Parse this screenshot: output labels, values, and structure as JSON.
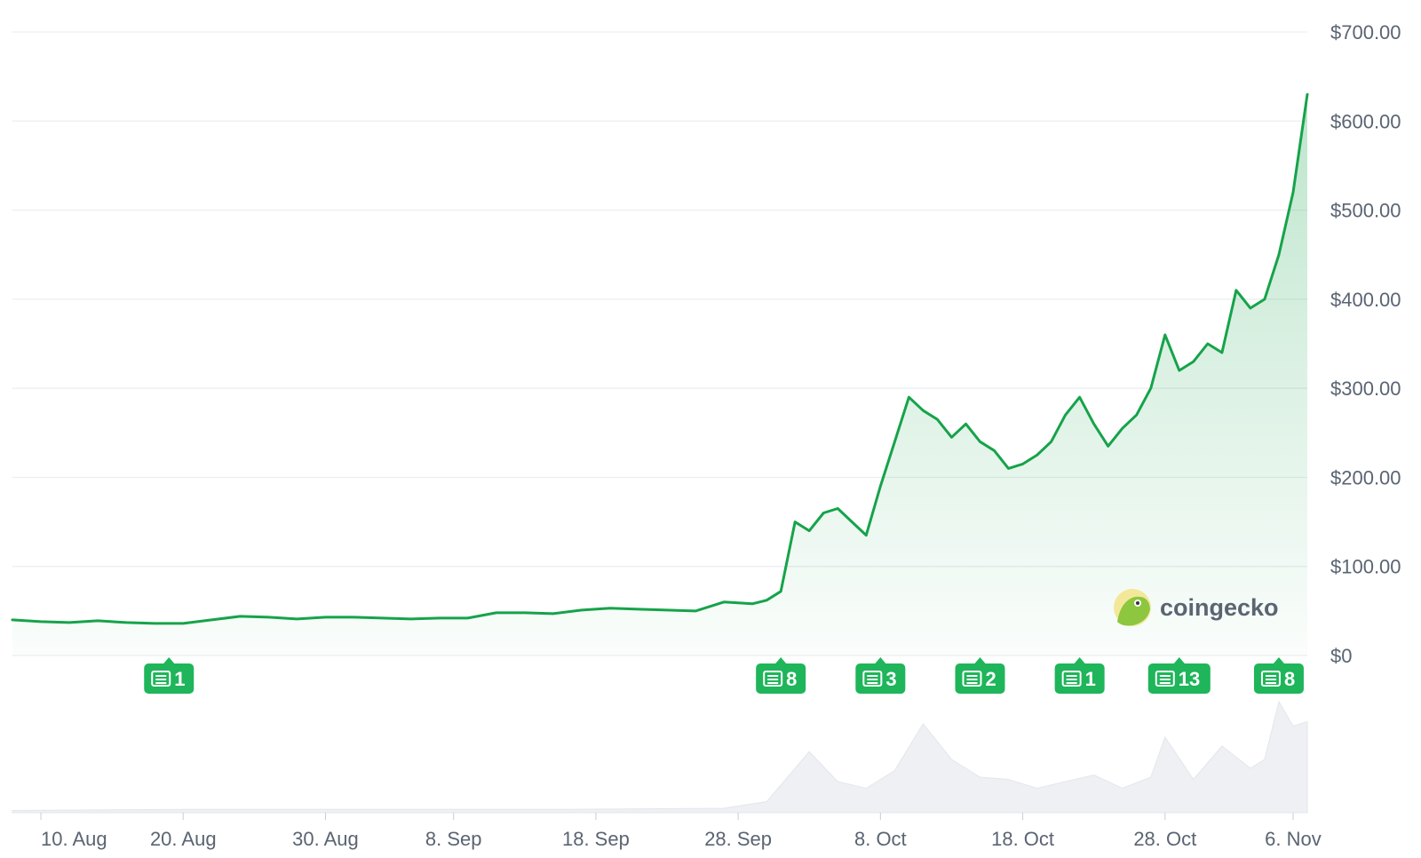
{
  "brand": {
    "name": "coingecko",
    "logo_icon": "gecko-logo-icon",
    "logo_color": "#8dc63f"
  },
  "colors": {
    "line": "#16a34a",
    "fill_top": "#16a34a",
    "badge": "#1fb55a",
    "volume": "#eef0f4",
    "grid": "#eaedf1",
    "tick_text": "#5a6472"
  },
  "chart_data": {
    "type": "area",
    "title": "",
    "xlabel": "",
    "ylabel": "",
    "ylim": [
      0,
      700
    ],
    "xlim": [
      "2024-08-08",
      "2024-11-07"
    ],
    "y_ticks": [
      {
        "value": 0,
        "label": "$0"
      },
      {
        "value": 100,
        "label": "$100.00"
      },
      {
        "value": 200,
        "label": "$200.00"
      },
      {
        "value": 300,
        "label": "$300.00"
      },
      {
        "value": 400,
        "label": "$400.00"
      },
      {
        "value": 500,
        "label": "$500.00"
      },
      {
        "value": 600,
        "label": "$600.00"
      },
      {
        "value": 700,
        "label": "$700.00"
      }
    ],
    "x_ticks": [
      {
        "date": "2024-08-10",
        "label": "10. Aug"
      },
      {
        "date": "2024-08-20",
        "label": "20. Aug"
      },
      {
        "date": "2024-08-30",
        "label": "30. Aug"
      },
      {
        "date": "2024-09-08",
        "label": "8. Sep"
      },
      {
        "date": "2024-09-18",
        "label": "18. Sep"
      },
      {
        "date": "2024-09-28",
        "label": "28. Sep"
      },
      {
        "date": "2024-10-08",
        "label": "8. Oct"
      },
      {
        "date": "2024-10-18",
        "label": "18. Oct"
      },
      {
        "date": "2024-10-28",
        "label": "28. Oct"
      },
      {
        "date": "2024-11-06",
        "label": "6. Nov"
      }
    ],
    "grid": true,
    "legend": "none",
    "price_series": {
      "x": [
        "2024-08-08",
        "2024-08-10",
        "2024-08-12",
        "2024-08-14",
        "2024-08-16",
        "2024-08-18",
        "2024-08-20",
        "2024-08-22",
        "2024-08-24",
        "2024-08-26",
        "2024-08-28",
        "2024-08-30",
        "2024-09-01",
        "2024-09-03",
        "2024-09-05",
        "2024-09-07",
        "2024-09-09",
        "2024-09-11",
        "2024-09-13",
        "2024-09-15",
        "2024-09-17",
        "2024-09-19",
        "2024-09-21",
        "2024-09-23",
        "2024-09-25",
        "2024-09-27",
        "2024-09-29",
        "2024-09-30",
        "2024-10-01",
        "2024-10-02",
        "2024-10-03",
        "2024-10-04",
        "2024-10-05",
        "2024-10-06",
        "2024-10-07",
        "2024-10-08",
        "2024-10-09",
        "2024-10-10",
        "2024-10-11",
        "2024-10-12",
        "2024-10-13",
        "2024-10-14",
        "2024-10-15",
        "2024-10-16",
        "2024-10-17",
        "2024-10-18",
        "2024-10-19",
        "2024-10-20",
        "2024-10-21",
        "2024-10-22",
        "2024-10-23",
        "2024-10-24",
        "2024-10-25",
        "2024-10-26",
        "2024-10-27",
        "2024-10-28",
        "2024-10-29",
        "2024-10-30",
        "2024-10-31",
        "2024-11-01",
        "2024-11-02",
        "2024-11-03",
        "2024-11-04",
        "2024-11-05",
        "2024-11-06",
        "2024-11-07"
      ],
      "values": [
        40,
        38,
        37,
        39,
        37,
        36,
        36,
        40,
        44,
        43,
        41,
        43,
        43,
        42,
        41,
        42,
        42,
        48,
        48,
        47,
        51,
        53,
        52,
        51,
        50,
        60,
        58,
        62,
        72,
        150,
        140,
        160,
        165,
        150,
        135,
        190,
        240,
        290,
        275,
        265,
        245,
        260,
        240,
        230,
        210,
        215,
        225,
        240,
        270,
        290,
        260,
        235,
        255,
        270,
        300,
        360,
        320,
        330,
        350,
        340,
        410,
        390,
        400,
        450,
        520,
        630
      ]
    },
    "volume_series": {
      "x": [
        "2024-08-08",
        "2024-08-20",
        "2024-09-01",
        "2024-09-15",
        "2024-09-27",
        "2024-09-30",
        "2024-10-03",
        "2024-10-05",
        "2024-10-07",
        "2024-10-09",
        "2024-10-11",
        "2024-10-13",
        "2024-10-15",
        "2024-10-17",
        "2024-10-19",
        "2024-10-21",
        "2024-10-23",
        "2024-10-25",
        "2024-10-27",
        "2024-10-28",
        "2024-10-30",
        "2024-11-01",
        "2024-11-03",
        "2024-11-04",
        "2024-11-05",
        "2024-11-06",
        "2024-11-07"
      ],
      "values": [
        2,
        3,
        3,
        3,
        4,
        10,
        55,
        28,
        22,
        38,
        80,
        48,
        32,
        30,
        22,
        28,
        34,
        22,
        32,
        68,
        30,
        60,
        40,
        48,
        100,
        78,
        82
      ],
      "unit": "relative"
    },
    "news_markers": [
      {
        "date": "2024-08-19",
        "count": "1"
      },
      {
        "date": "2024-10-01",
        "count": "8"
      },
      {
        "date": "2024-10-08",
        "count": "3"
      },
      {
        "date": "2024-10-15",
        "count": "2"
      },
      {
        "date": "2024-10-22",
        "count": "1"
      },
      {
        "date": "2024-10-29",
        "count": "13"
      },
      {
        "date": "2024-11-05",
        "count": "8"
      }
    ]
  }
}
